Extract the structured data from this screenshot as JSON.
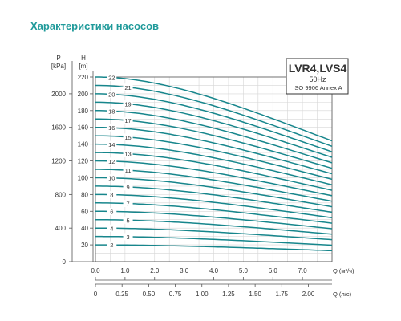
{
  "page": {
    "title": "Характеристики насосов"
  },
  "colors": {
    "title": "#1f9a9a",
    "curve": "#17868c",
    "grid": "#d6d6d6",
    "axis": "#555555"
  },
  "chart_data": {
    "type": "line",
    "title": "LVR4,LVS4",
    "subtitle_lines": [
      "50Hz",
      "ISO 9906 Annex A"
    ],
    "y_left_outer": {
      "unit_top": "P",
      "unit_bottom": "[kPa]",
      "ticks": [
        0,
        400,
        800,
        1200,
        1600,
        2000
      ],
      "range": [
        0,
        2200
      ]
    },
    "y_left_inner": {
      "unit_top": "H",
      "unit_bottom": "[m]",
      "ticks": [
        20,
        40,
        60,
        80,
        100,
        120,
        140,
        160,
        180,
        200,
        220
      ],
      "range": [
        0,
        220
      ]
    },
    "x_primary": {
      "label": "Q (м³/ч)",
      "ticks": [
        "0.0",
        "1.0",
        "2.0",
        "3.0",
        "4.0",
        "5.0",
        "6.0",
        "7.0"
      ],
      "range": [
        0,
        8.0
      ]
    },
    "x_secondary": {
      "label": "Q (л/с)",
      "ticks": [
        "0",
        "0.25",
        "0.50",
        "0.75",
        "1.00",
        "1.25",
        "1.50",
        "1.75",
        "2.00"
      ]
    },
    "grid": true,
    "curve_model": "H(Q) = H0 * (1 - 0.0094*Q^2 + 0.00058*Q^3 - 0.00001*Q^4), Q in m3/h",
    "series": [
      {
        "name": "2",
        "H0": 20,
        "label_q": 0.55
      },
      {
        "name": "3",
        "H0": 30,
        "label_q": 1.1
      },
      {
        "name": "4",
        "H0": 40,
        "label_q": 0.55
      },
      {
        "name": "5",
        "H0": 50,
        "label_q": 1.1
      },
      {
        "name": "6",
        "H0": 60,
        "label_q": 0.55
      },
      {
        "name": "7",
        "H0": 70,
        "label_q": 1.1
      },
      {
        "name": "8",
        "H0": 80,
        "label_q": 0.55
      },
      {
        "name": "9",
        "H0": 90,
        "label_q": 1.1
      },
      {
        "name": "10",
        "H0": 100,
        "label_q": 0.55
      },
      {
        "name": "11",
        "H0": 110,
        "label_q": 1.1
      },
      {
        "name": "12",
        "H0": 120,
        "label_q": 0.55
      },
      {
        "name": "13",
        "H0": 130,
        "label_q": 1.1
      },
      {
        "name": "14",
        "H0": 140,
        "label_q": 0.55
      },
      {
        "name": "15",
        "H0": 150,
        "label_q": 1.1
      },
      {
        "name": "16",
        "H0": 160,
        "label_q": 0.55
      },
      {
        "name": "17",
        "H0": 170,
        "label_q": 1.1
      },
      {
        "name": "18",
        "H0": 180,
        "label_q": 0.55
      },
      {
        "name": "19",
        "H0": 190,
        "label_q": 1.1
      },
      {
        "name": "20",
        "H0": 200,
        "label_q": 0.55
      },
      {
        "name": "21",
        "H0": 210,
        "label_q": 1.1
      },
      {
        "name": "22",
        "H0": 220,
        "label_q": 0.55
      }
    ]
  }
}
